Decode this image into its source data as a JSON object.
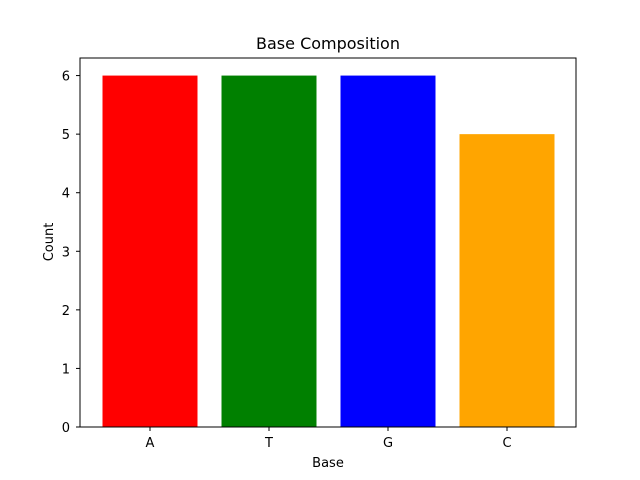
{
  "chart_data": {
    "type": "bar",
    "title": "Base Composition",
    "xlabel": "Base",
    "ylabel": "Count",
    "categories": [
      "A",
      "T",
      "G",
      "C"
    ],
    "values": [
      6,
      6,
      6,
      5
    ],
    "colors": [
      "#ff0000",
      "#008000",
      "#0000ff",
      "#ffa500"
    ],
    "ylim": [
      0,
      6.3
    ],
    "yticks": [
      0,
      1,
      2,
      3,
      4,
      5,
      6
    ],
    "grid": false,
    "legend": "none"
  }
}
